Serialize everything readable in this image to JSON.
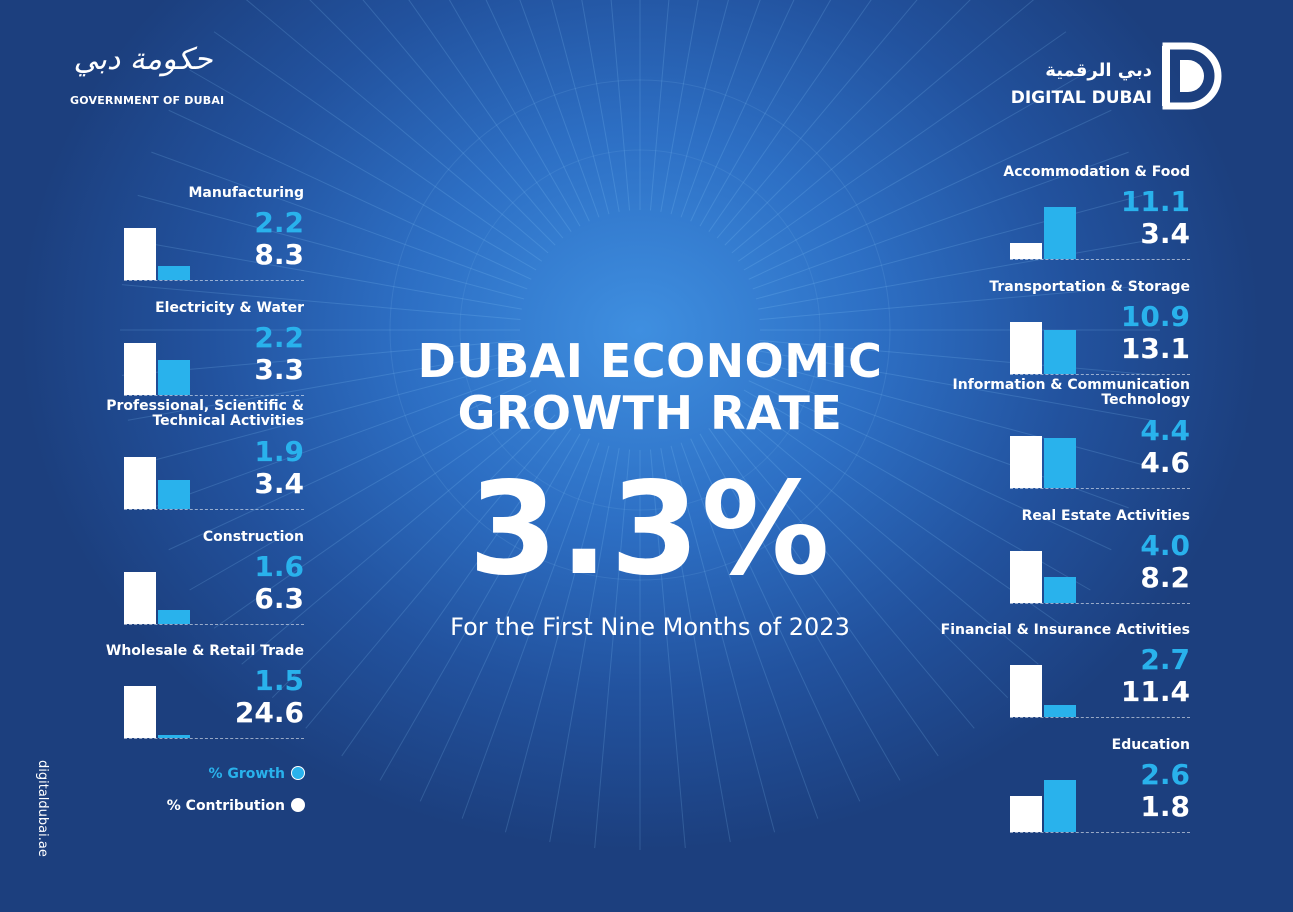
{
  "header": {
    "gov_logo_arabic": "حكومة دبي",
    "gov_logo_english": "GOVERNMENT OF DUBAI",
    "dd_logo_arabic": "دبي الرقمية",
    "dd_logo_english": "DIGITAL DUBAI"
  },
  "main": {
    "title_line1": "DUBAI ECONOMIC",
    "title_line2": "GROWTH RATE",
    "rate": "3.3%",
    "subtitle": "For the First Nine Months of 2023"
  },
  "legend": {
    "growth_label": "% Growth",
    "contribution_label": "% Contribution"
  },
  "website": "digitaldubai.ae",
  "colors": {
    "growth": "#29b2ec",
    "contribution": "#ffffff",
    "background": "#2d6fc4"
  },
  "chart_data": {
    "type": "bar",
    "series": [
      {
        "name": "% Growth",
        "color": "#29b2ec"
      },
      {
        "name": "% Contribution",
        "color": "#ffffff"
      }
    ],
    "left_sectors": [
      {
        "label": "Manufacturing",
        "growth": 2.2,
        "contribution": 8.3,
        "growth_text": "2.2",
        "contribution_text": "8.3"
      },
      {
        "label": "Electricity & Water",
        "growth": 2.2,
        "contribution": 3.3,
        "growth_text": "2.2",
        "contribution_text": "3.3"
      },
      {
        "label": "Professional, Scientific & Technical Activities",
        "label_line1": "Professional, Scientific &",
        "label_line2": "Technical Activities",
        "growth": 1.9,
        "contribution": 3.4,
        "growth_text": "1.9",
        "contribution_text": "3.4"
      },
      {
        "label": "Construction",
        "growth": 1.6,
        "contribution": 6.3,
        "growth_text": "1.6",
        "contribution_text": "6.3"
      },
      {
        "label": "Wholesale & Retail Trade",
        "growth": 1.5,
        "contribution": 24.6,
        "growth_text": "1.5",
        "contribution_text": "24.6"
      }
    ],
    "right_sectors": [
      {
        "label": "Accommodation & Food",
        "growth": 11.1,
        "contribution": 3.4,
        "growth_text": "11.1",
        "contribution_text": "3.4"
      },
      {
        "label": "Transportation & Storage",
        "growth": 10.9,
        "contribution": 13.1,
        "growth_text": "10.9",
        "contribution_text": "13.1"
      },
      {
        "label": "Information & Communication Technology",
        "label_line1": "Information & Communication",
        "label_line2": "Technology",
        "growth": 4.4,
        "contribution": 4.6,
        "growth_text": "4.4",
        "contribution_text": "4.6"
      },
      {
        "label": "Real Estate Activities",
        "growth": 4.0,
        "contribution": 8.2,
        "growth_text": "4.0",
        "contribution_text": "8.2"
      },
      {
        "label": "Financial & Insurance Activities",
        "growth": 2.7,
        "contribution": 11.4,
        "growth_text": "2.7",
        "contribution_text": "11.4"
      },
      {
        "label": "Education",
        "growth": 2.6,
        "contribution": 1.8,
        "growth_text": "2.6",
        "contribution_text": "1.8"
      }
    ]
  }
}
